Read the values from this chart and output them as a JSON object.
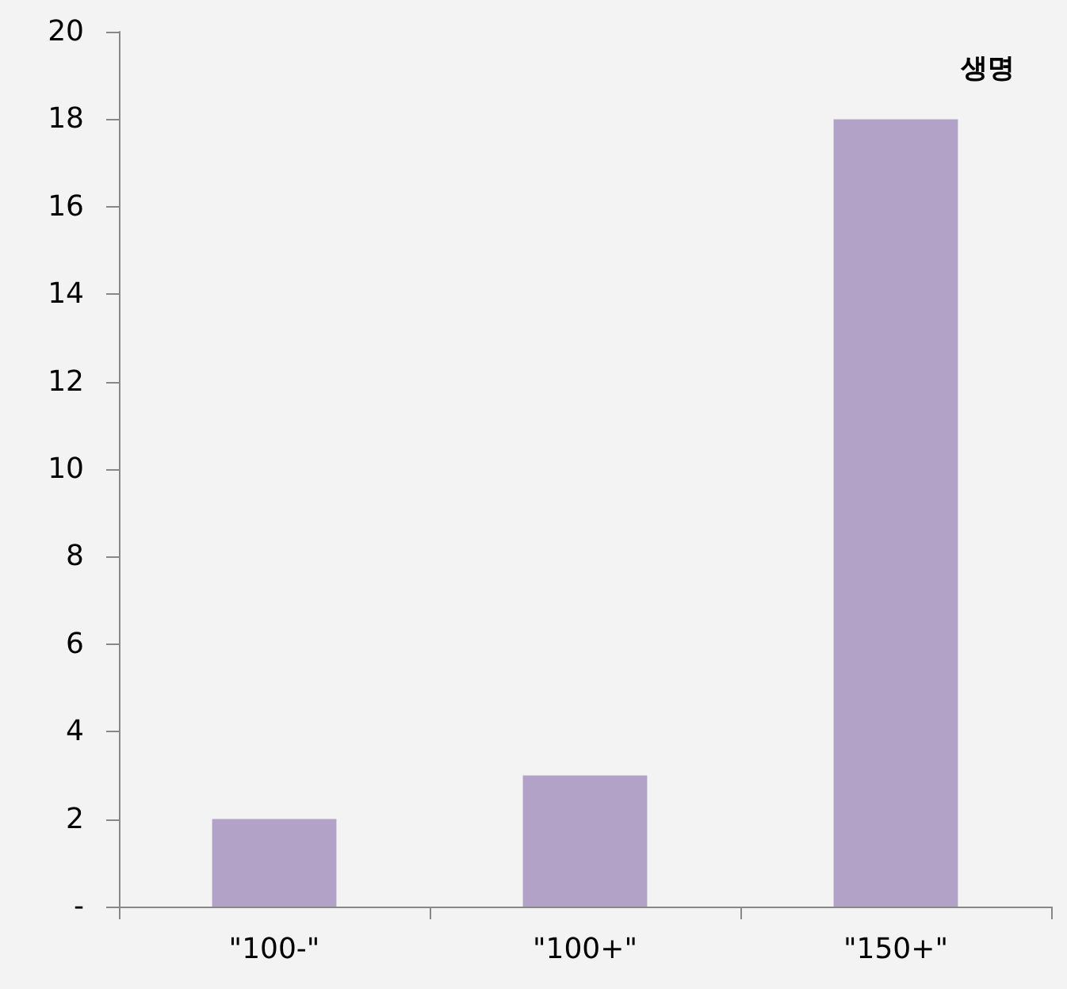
{
  "chart_data": {
    "type": "bar",
    "title": "생명",
    "categories": [
      "\"100-\"",
      "\"100+\"",
      "\"150+\""
    ],
    "values": [
      2,
      3,
      18
    ],
    "color": "#b3a2c7",
    "ylim": [
      0,
      20
    ],
    "yticks": [
      {
        "value": 0,
        "label": "-"
      },
      2,
      4,
      6,
      8,
      10,
      12,
      14,
      16,
      18,
      20
    ],
    "grid": false
  }
}
